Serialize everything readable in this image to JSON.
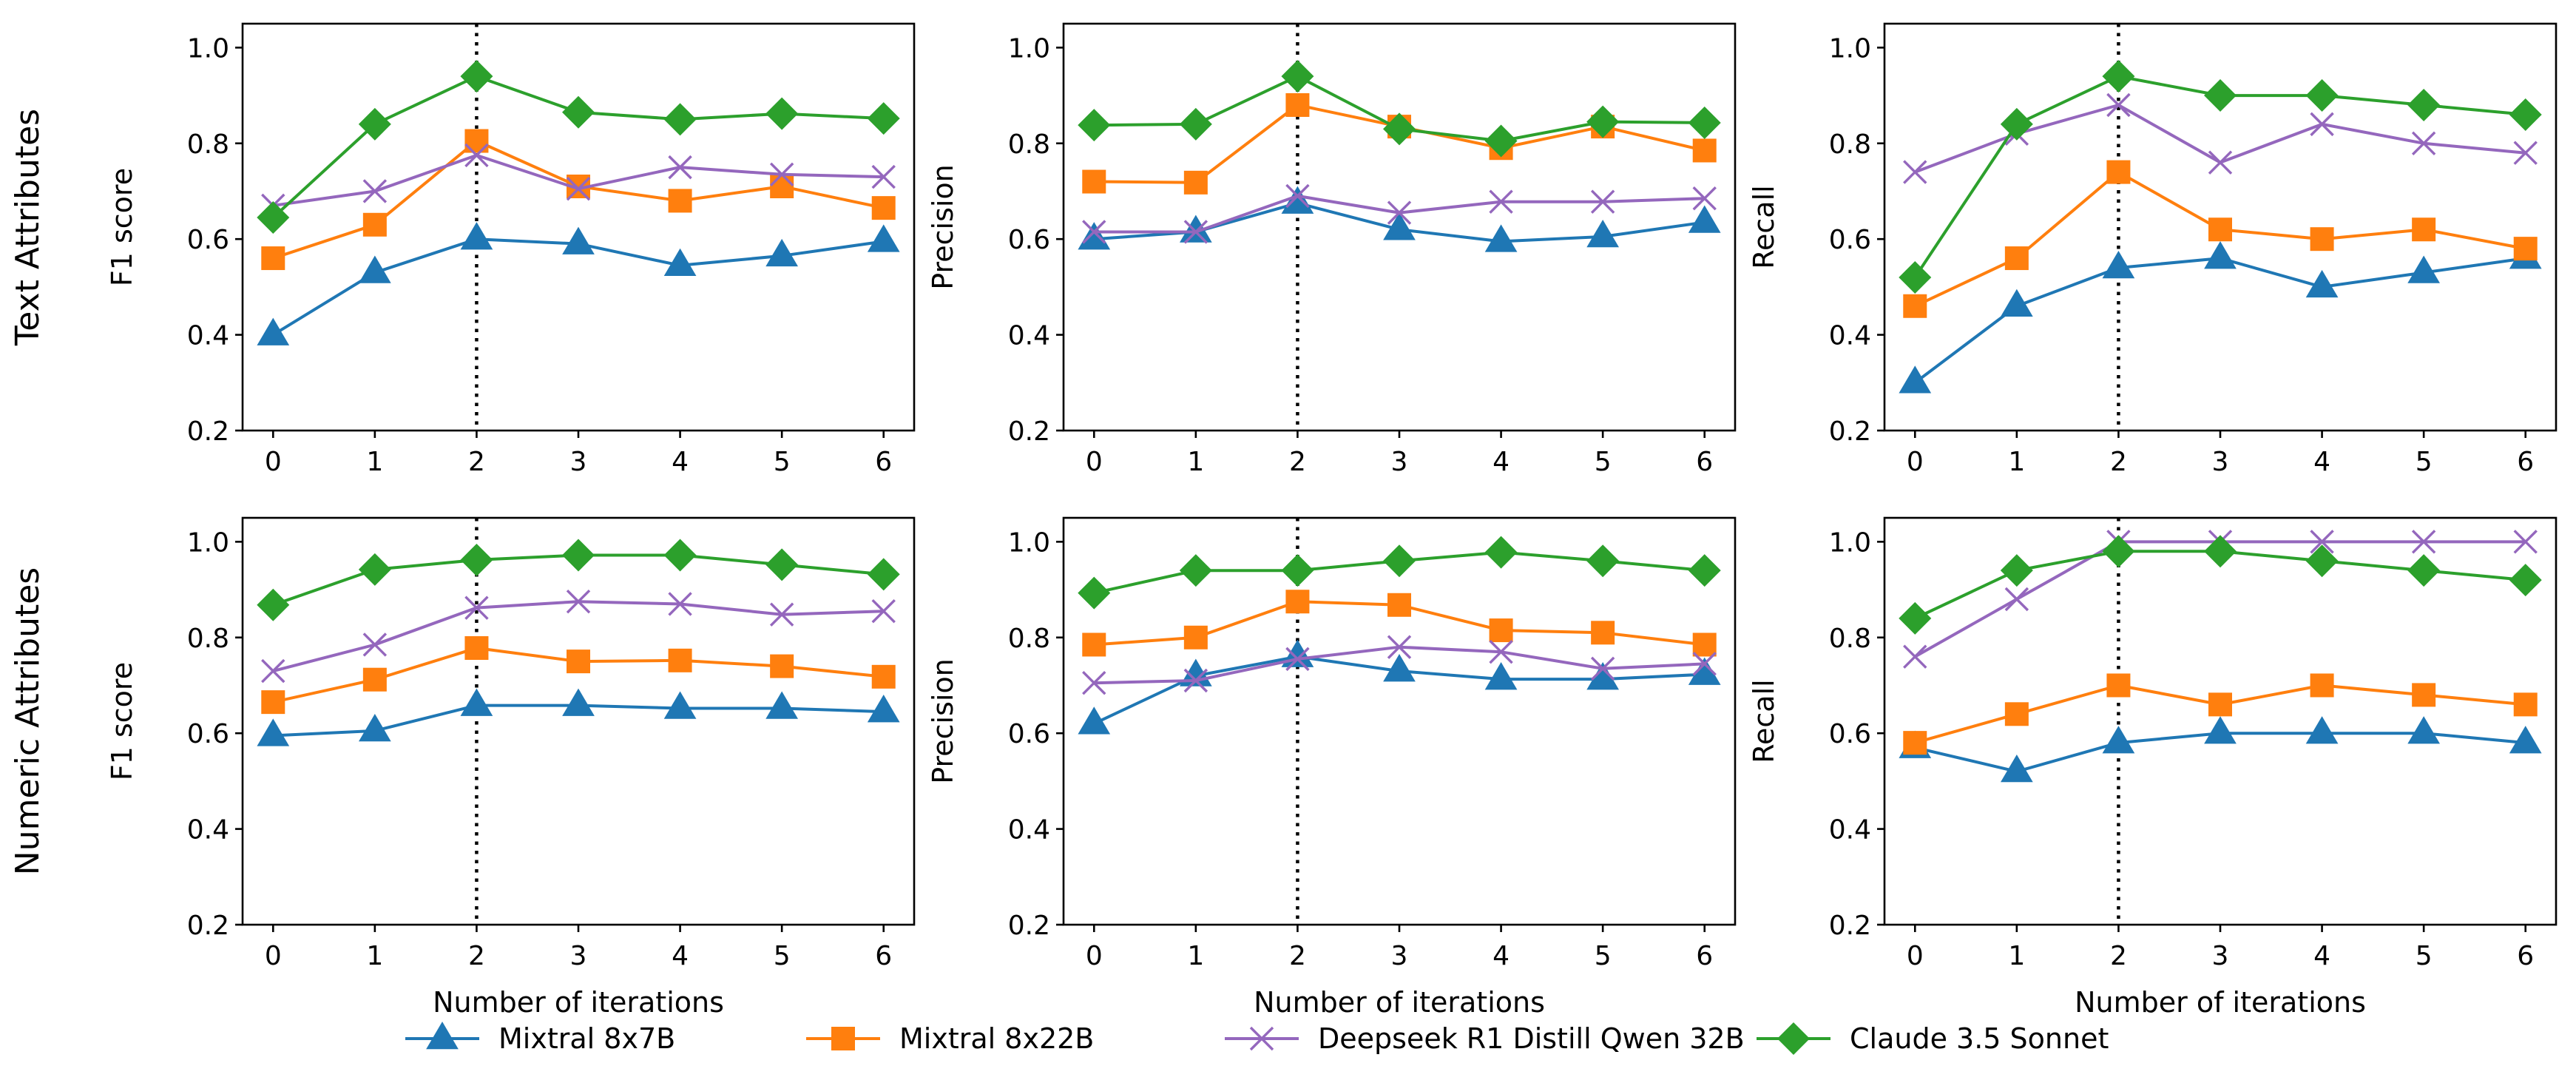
{
  "chart_data": {
    "type": "line",
    "x": [
      0,
      1,
      2,
      3,
      4,
      5,
      6
    ],
    "xticks": [
      "0",
      "1",
      "2",
      "3",
      "4",
      "5",
      "6"
    ],
    "yticks": [
      "0.2",
      "0.4",
      "0.6",
      "0.8",
      "1.0"
    ],
    "ylim": [
      0.2,
      1.05
    ],
    "xlim": [
      -0.3,
      6.3
    ],
    "xlabel": "Number of iterations",
    "vline_x": 2,
    "legend_position": "bottom-center",
    "rows": [
      "Text Attributes",
      "Numeric Attributes"
    ],
    "series_styles": [
      {
        "name": "Mixtral 8x7B",
        "color": "#1f77b4",
        "marker": "triangle"
      },
      {
        "name": "Mixtral 8x22B",
        "color": "#ff7f0e",
        "marker": "square"
      },
      {
        "name": "Deepseek R1 Distill Qwen 32B",
        "color": "#9467bd",
        "marker": "x"
      },
      {
        "name": "Claude 3.5 Sonnet",
        "color": "#2ca02c",
        "marker": "diamond"
      }
    ],
    "panels": [
      {
        "row": 0,
        "col": 0,
        "ylabel": "F1 score",
        "series": [
          {
            "name": "Mixtral 8x7B",
            "values": [
              0.4,
              0.53,
              0.6,
              0.59,
              0.545,
              0.565,
              0.595
            ]
          },
          {
            "name": "Mixtral 8x22B",
            "values": [
              0.56,
              0.63,
              0.805,
              0.71,
              0.68,
              0.71,
              0.665
            ]
          },
          {
            "name": "Deepseek R1 Distill Qwen 32B",
            "values": [
              0.67,
              0.7,
              0.775,
              0.705,
              0.75,
              0.735,
              0.73
            ]
          },
          {
            "name": "Claude 3.5 Sonnet",
            "values": [
              0.645,
              0.84,
              0.94,
              0.865,
              0.85,
              0.862,
              0.852
            ]
          }
        ]
      },
      {
        "row": 0,
        "col": 1,
        "ylabel": "Precision",
        "series": [
          {
            "name": "Mixtral 8x7B",
            "values": [
              0.6,
              0.615,
              0.675,
              0.62,
              0.595,
              0.605,
              0.635
            ]
          },
          {
            "name": "Mixtral 8x22B",
            "values": [
              0.72,
              0.718,
              0.88,
              0.835,
              0.79,
              0.835,
              0.785
            ]
          },
          {
            "name": "Deepseek R1 Distill Qwen 32B",
            "values": [
              0.615,
              0.615,
              0.69,
              0.655,
              0.678,
              0.678,
              0.685
            ]
          },
          {
            "name": "Claude 3.5 Sonnet",
            "values": [
              0.838,
              0.84,
              0.94,
              0.83,
              0.805,
              0.845,
              0.843
            ]
          }
        ]
      },
      {
        "row": 0,
        "col": 2,
        "ylabel": "Recall",
        "series": [
          {
            "name": "Mixtral 8x7B",
            "values": [
              0.3,
              0.46,
              0.54,
              0.56,
              0.5,
              0.53,
              0.56
            ]
          },
          {
            "name": "Mixtral 8x22B",
            "values": [
              0.46,
              0.56,
              0.74,
              0.62,
              0.6,
              0.62,
              0.58
            ]
          },
          {
            "name": "Deepseek R1 Distill Qwen 32B",
            "values": [
              0.74,
              0.82,
              0.88,
              0.76,
              0.84,
              0.8,
              0.78
            ]
          },
          {
            "name": "Claude 3.5 Sonnet",
            "values": [
              0.52,
              0.84,
              0.94,
              0.9,
              0.9,
              0.88,
              0.86
            ]
          }
        ]
      },
      {
        "row": 1,
        "col": 0,
        "ylabel": "F1 score",
        "series": [
          {
            "name": "Mixtral 8x7B",
            "values": [
              0.595,
              0.605,
              0.658,
              0.658,
              0.652,
              0.652,
              0.645
            ]
          },
          {
            "name": "Mixtral 8x22B",
            "values": [
              0.665,
              0.712,
              0.778,
              0.75,
              0.752,
              0.74,
              0.718
            ]
          },
          {
            "name": "Deepseek R1 Distill Qwen 32B",
            "values": [
              0.73,
              0.785,
              0.862,
              0.875,
              0.87,
              0.848,
              0.855
            ]
          },
          {
            "name": "Claude 3.5 Sonnet",
            "values": [
              0.868,
              0.942,
              0.962,
              0.972,
              0.972,
              0.952,
              0.932
            ]
          }
        ]
      },
      {
        "row": 1,
        "col": 1,
        "ylabel": "Precision",
        "series": [
          {
            "name": "Mixtral 8x7B",
            "values": [
              0.62,
              0.72,
              0.76,
              0.73,
              0.713,
              0.713,
              0.723
            ]
          },
          {
            "name": "Mixtral 8x22B",
            "values": [
              0.785,
              0.8,
              0.875,
              0.868,
              0.815,
              0.81,
              0.785
            ]
          },
          {
            "name": "Deepseek R1 Distill Qwen 32B",
            "values": [
              0.705,
              0.71,
              0.755,
              0.78,
              0.77,
              0.735,
              0.745
            ]
          },
          {
            "name": "Claude 3.5 Sonnet",
            "values": [
              0.893,
              0.94,
              0.94,
              0.96,
              0.978,
              0.96,
              0.94
            ]
          }
        ]
      },
      {
        "row": 1,
        "col": 2,
        "ylabel": "Recall",
        "series": [
          {
            "name": "Mixtral 8x7B",
            "values": [
              0.57,
              0.52,
              0.58,
              0.6,
              0.6,
              0.6,
              0.58
            ]
          },
          {
            "name": "Mixtral 8x22B",
            "values": [
              0.58,
              0.64,
              0.7,
              0.66,
              0.7,
              0.68,
              0.66
            ]
          },
          {
            "name": "Deepseek R1 Distill Qwen 32B",
            "values": [
              0.76,
              0.88,
              1.0,
              1.0,
              1.0,
              1.0,
              1.0
            ]
          },
          {
            "name": "Claude 3.5 Sonnet",
            "values": [
              0.84,
              0.94,
              0.98,
              0.98,
              0.96,
              0.94,
              0.92
            ]
          }
        ]
      }
    ]
  }
}
